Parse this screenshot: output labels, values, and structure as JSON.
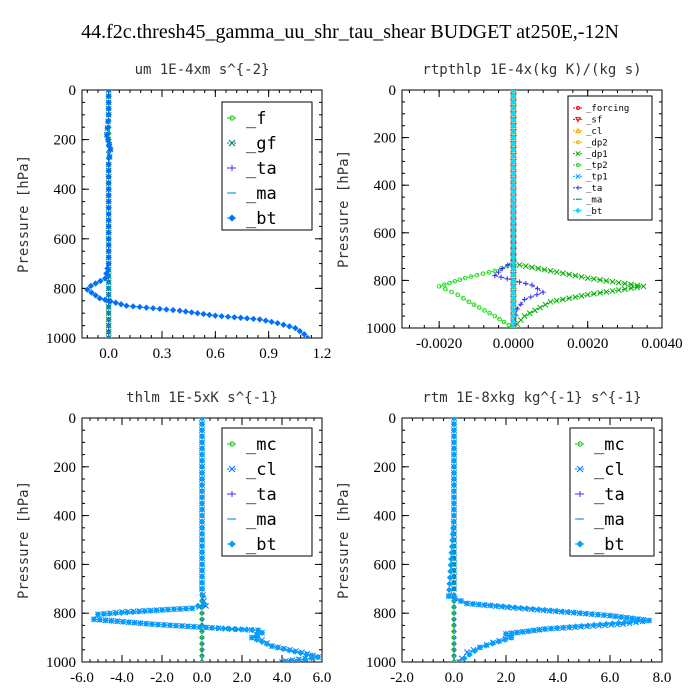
{
  "title": "44.f2c.thresh45_gamma_uu_shr_tau_shear  BUDGET at250E,-12N",
  "chart_data": [
    {
      "type": "line",
      "title": "um  1E-4xm s^{-2}",
      "ylabel": "Pressure [hPa]",
      "ylim": [
        1000,
        0
      ],
      "xlim": [
        -0.15,
        1.2
      ],
      "xticks": [
        0.0,
        0.3,
        0.6,
        0.9,
        1.2
      ],
      "xtick_labels": [
        "0.0",
        "0.3",
        "0.6",
        "0.9",
        "1.2"
      ],
      "yticks": [
        0,
        200,
        400,
        600,
        800,
        1000
      ],
      "ytick_labels": [
        "0",
        "200",
        "400",
        "600",
        "800",
        "1000"
      ],
      "legend": "top-right",
      "legend_size": "large",
      "series": [
        {
          "name": "_f",
          "color": "#00c000",
          "marker": "circle",
          "x": [
            0,
            0,
            0,
            0,
            0,
            0,
            0,
            0,
            0,
            0,
            0,
            0
          ],
          "y": [
            0,
            100,
            200,
            300,
            400,
            500,
            600,
            700,
            800,
            900,
            950,
            1000
          ]
        },
        {
          "name": "_gf",
          "color": "#007a7a",
          "marker": "x",
          "x": [
            0,
            0,
            -0.01,
            0.01,
            0,
            0,
            0,
            0,
            0,
            0,
            0,
            0
          ],
          "y": [
            0,
            100,
            180,
            240,
            300,
            400,
            500,
            600,
            700,
            800,
            900,
            1000
          ]
        },
        {
          "name": "_ta",
          "color": "#3030ff",
          "marker": "plus",
          "x": [
            0,
            0,
            0,
            0,
            0,
            0,
            0,
            0,
            0,
            0,
            0,
            0
          ],
          "y": [
            0,
            100,
            200,
            300,
            400,
            500,
            600,
            700,
            800,
            900,
            950,
            1000
          ]
        },
        {
          "name": "_ma",
          "color": "#00a0c0",
          "marker": "dash",
          "x": [
            0,
            0,
            0,
            0,
            0,
            0,
            0,
            0,
            0,
            0,
            0,
            0
          ],
          "y": [
            0,
            100,
            200,
            300,
            400,
            500,
            600,
            700,
            800,
            900,
            950,
            1000
          ]
        },
        {
          "name": "_bt",
          "color": "#0070ff",
          "marker": "diamond",
          "x": [
            0,
            0,
            -0.01,
            0.01,
            0,
            0,
            0,
            -0.02,
            -0.1,
            -0.12,
            -0.05,
            0.1,
            0.25,
            0.4,
            0.6,
            0.85,
            0.95,
            1.05,
            1.1,
            1.12
          ],
          "y": [
            0,
            100,
            180,
            240,
            300,
            500,
            700,
            760,
            790,
            805,
            840,
            870,
            880,
            890,
            910,
            925,
            940,
            960,
            985,
            1000
          ]
        }
      ]
    },
    {
      "type": "line",
      "title": "rtpthlp  1E-4x(kg K)/(kg s)",
      "ylabel": "Pressure [hPa]",
      "ylim": [
        1000,
        0
      ],
      "xlim": [
        -0.003,
        0.004
      ],
      "xticks": [
        -0.002,
        0.0,
        0.002,
        0.004
      ],
      "xtick_labels": [
        "-0.0020",
        "0.0000",
        "0.0020",
        "0.0040"
      ],
      "yticks": [
        0,
        200,
        400,
        600,
        800,
        1000
      ],
      "ytick_labels": [
        "0",
        "200",
        "400",
        "600",
        "800",
        "1000"
      ],
      "legend": "top-right",
      "legend_size": "small",
      "series": [
        {
          "name": "_forcing",
          "color": "#ff0000",
          "marker": "circle",
          "x": [
            0,
            0,
            0,
            0,
            0,
            0,
            0,
            0,
            0,
            0
          ],
          "y": [
            0,
            100,
            200,
            300,
            400,
            500,
            600,
            700,
            800,
            1000
          ]
        },
        {
          "name": "_sf",
          "color": "#ff0000",
          "marker": "triangle-down",
          "x": [
            0,
            0,
            0,
            0,
            0,
            0
          ],
          "y": [
            0,
            200,
            400,
            600,
            800,
            1000
          ]
        },
        {
          "name": "_cl",
          "color": "#ffa000",
          "marker": "triangle",
          "x": [
            0,
            0,
            0,
            0,
            0,
            0
          ],
          "y": [
            0,
            200,
            400,
            600,
            800,
            1000
          ]
        },
        {
          "name": "_dp2",
          "color": "#e0c000",
          "marker": "circle",
          "x": [
            0,
            0,
            0,
            0,
            0,
            0
          ],
          "y": [
            0,
            200,
            400,
            600,
            800,
            1000
          ]
        },
        {
          "name": "_dp1",
          "color": "#00b000",
          "marker": "x",
          "x": [
            0,
            0,
            0,
            0.001,
            0.002,
            0.0035,
            0.002,
            0.001,
            0.0003,
            0
          ],
          "y": [
            0,
            400,
            730,
            760,
            790,
            825,
            860,
            890,
            950,
            1000
          ]
        },
        {
          "name": "_tp2",
          "color": "#20e020",
          "marker": "circle",
          "x": [
            0,
            0,
            0,
            -0.0005,
            -0.0013,
            -0.002,
            -0.0015,
            -0.0012,
            -0.0005,
            0
          ],
          "y": [
            0,
            400,
            730,
            760,
            790,
            825,
            860,
            890,
            950,
            1000
          ]
        },
        {
          "name": "_tp1",
          "color": "#00a0ff",
          "marker": "x",
          "x": [
            0,
            0,
            0,
            0,
            0,
            0
          ],
          "y": [
            0,
            200,
            400,
            600,
            800,
            1000
          ]
        },
        {
          "name": "_ta",
          "color": "#3030ff",
          "marker": "plus",
          "x": [
            0,
            0,
            0,
            -0.0003,
            -0.0005,
            0.0005,
            0.0008,
            0.0003,
            0.0001,
            0
          ],
          "y": [
            0,
            400,
            720,
            750,
            780,
            820,
            850,
            880,
            920,
            1000
          ]
        },
        {
          "name": "_ma",
          "color": "#00a0c0",
          "marker": "dash",
          "x": [
            0,
            0,
            0,
            0,
            0,
            0
          ],
          "y": [
            0,
            200,
            400,
            600,
            800,
            1000
          ]
        },
        {
          "name": "_bt",
          "color": "#00e0ff",
          "marker": "diamond",
          "x": [
            0,
            0,
            0,
            0,
            0,
            0
          ],
          "y": [
            0,
            200,
            400,
            600,
            800,
            1000
          ]
        }
      ]
    },
    {
      "type": "line",
      "title": "thlm  1E-5xK s^{-1}",
      "ylabel": "Pressure [hPa]",
      "ylim": [
        1000,
        0
      ],
      "xlim": [
        -6,
        6
      ],
      "xticks": [
        -6,
        -4,
        -2,
        0,
        2,
        4,
        6
      ],
      "xtick_labels": [
        "-6.0",
        "-4.0",
        "-2.0",
        "0.0",
        "2.0",
        "4.0",
        "6.0"
      ],
      "yticks": [
        0,
        200,
        400,
        600,
        800,
        1000
      ],
      "ytick_labels": [
        "0",
        "200",
        "400",
        "600",
        "800",
        "1000"
      ],
      "legend": "top-right",
      "legend_size": "large",
      "series": [
        {
          "name": "_mc",
          "color": "#00c000",
          "marker": "circle",
          "x": [
            0,
            0,
            0,
            0,
            0,
            0,
            0,
            0,
            0,
            0,
            0,
            0
          ],
          "y": [
            0,
            100,
            200,
            300,
            400,
            500,
            600,
            700,
            800,
            900,
            950,
            1000
          ]
        },
        {
          "name": "_cl",
          "color": "#0070ff",
          "marker": "x",
          "x": [
            0,
            0,
            0,
            0.1,
            0.2,
            -0.5,
            -1.7,
            -4.0,
            -5.2,
            -5.4,
            -2.5,
            0.5,
            1.5,
            2.8,
            3.0,
            2.5,
            3.0,
            3.5,
            5.0,
            5.8,
            4.2,
            4.0
          ],
          "y": [
            0,
            400,
            700,
            750,
            770,
            780,
            785,
            795,
            805,
            825,
            845,
            860,
            865,
            870,
            880,
            900,
            910,
            935,
            960,
            980,
            995,
            1000
          ]
        },
        {
          "name": "_ta",
          "color": "#3030ff",
          "marker": "plus",
          "x": [
            0,
            0,
            0,
            0,
            0,
            0
          ],
          "y": [
            0,
            200,
            400,
            600,
            800,
            1000
          ]
        },
        {
          "name": "_ma",
          "color": "#00a0c0",
          "marker": "dash",
          "x": [
            0,
            0,
            0,
            0,
            0,
            0
          ],
          "y": [
            0,
            200,
            400,
            600,
            800,
            1000
          ]
        },
        {
          "name": "_bt",
          "color": "#00a0ff",
          "marker": "diamond",
          "x": [
            0,
            0,
            0,
            0.1,
            -0.5,
            -1.7,
            -5.2,
            -5.4,
            -2.5,
            0.5,
            2.8,
            3.0,
            2.5,
            3.5,
            5.8,
            4.2
          ],
          "y": [
            0,
            400,
            700,
            760,
            780,
            785,
            805,
            825,
            845,
            860,
            870,
            880,
            900,
            935,
            980,
            1000
          ]
        }
      ]
    },
    {
      "type": "line",
      "title": "rtm  1E-8xkg kg^{-1} s^{-1}",
      "ylabel": "Pressure [hPa]",
      "ylim": [
        1000,
        0
      ],
      "xlim": [
        -2,
        8
      ],
      "xticks": [
        -2,
        0,
        2,
        4,
        6,
        8
      ],
      "xtick_labels": [
        "-2.0",
        "0.0",
        "2.0",
        "4.0",
        "6.0",
        "8.0"
      ],
      "yticks": [
        0,
        200,
        400,
        600,
        800,
        1000
      ],
      "ytick_labels": [
        "0",
        "200",
        "400",
        "600",
        "800",
        "1000"
      ],
      "legend": "top-right",
      "legend_size": "large",
      "series": [
        {
          "name": "_mc",
          "color": "#00c000",
          "marker": "circle",
          "x": [
            0,
            0,
            0,
            0,
            0,
            0,
            0,
            0,
            0,
            0,
            0,
            0
          ],
          "y": [
            0,
            100,
            200,
            300,
            400,
            500,
            600,
            700,
            800,
            900,
            950,
            1000
          ]
        },
        {
          "name": "_cl",
          "color": "#0070ff",
          "marker": "x",
          "x": [
            0,
            0,
            0,
            -0.2,
            0.5,
            2.5,
            6.0,
            7.5,
            6.5,
            3.5,
            2.0,
            2.2,
            1.5,
            1.0,
            0.5,
            0.3,
            0.2
          ],
          "y": [
            0,
            400,
            700,
            730,
            760,
            780,
            810,
            830,
            845,
            865,
            885,
            900,
            920,
            940,
            960,
            985,
            1000
          ]
        },
        {
          "name": "_ta",
          "color": "#3030ff",
          "marker": "plus",
          "x": [
            0,
            0,
            0,
            0,
            0,
            0
          ],
          "y": [
            0,
            200,
            400,
            600,
            800,
            1000
          ]
        },
        {
          "name": "_ma",
          "color": "#00a0c0",
          "marker": "dash",
          "x": [
            0,
            0,
            0,
            0,
            0,
            0
          ],
          "y": [
            0,
            200,
            400,
            600,
            800,
            1000
          ]
        },
        {
          "name": "_bt",
          "color": "#00a0ff",
          "marker": "diamond",
          "x": [
            0,
            0,
            -0.2,
            0.5,
            6.0,
            7.5,
            3.5,
            2.0,
            2.2,
            1.0,
            0.2
          ],
          "y": [
            0,
            400,
            730,
            760,
            810,
            830,
            865,
            885,
            900,
            940,
            1000
          ]
        }
      ]
    }
  ]
}
